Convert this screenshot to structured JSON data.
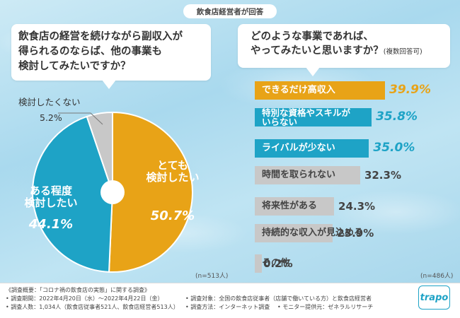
{
  "header": "飲食店経営者が回答",
  "left_question": "飲食店の経営を続けながら副収入が\n得られるのならば、他の事業も\n検討してみたいですか？",
  "right_question": "どのような事業であれば、\nやってみたいと思いますか？",
  "right_question_note": "(複数回答可)",
  "chart_data": [
    {
      "type": "pie",
      "categories": [
        "とても検討したい",
        "ある程度検討したい",
        "検討したくない"
      ],
      "values": [
        50.7,
        44.1,
        5.2
      ],
      "value_labels": [
        "50.7%",
        "44.1%",
        "5.2%"
      ],
      "colors": [
        "#e8a317",
        "#1ea3c6",
        "#c8c8c8"
      ],
      "n": "(n=513人)"
    },
    {
      "type": "bar",
      "orientation": "horizontal",
      "categories": [
        "できるだけ高収入",
        "特別な資格やスキルが\nいらない",
        "ライバルが少ない",
        "時間を取られない",
        "将来性がある",
        "持続的な収入が見込める",
        "その他"
      ],
      "values": [
        39.9,
        35.8,
        35.0,
        32.3,
        24.3,
        23.9,
        0.2
      ],
      "value_labels": [
        "39.9%",
        "35.8%",
        "35.0%",
        "32.3%",
        "24.3%",
        "23.9%",
        "0.2%"
      ],
      "colors": [
        "#e8a317",
        "#1ea3c6",
        "#1ea3c6",
        "#c8c8c8",
        "#c8c8c8",
        "#c8c8c8",
        "#c8c8c8"
      ],
      "n": "(n=486人)"
    }
  ],
  "pie_labels": {
    "very": "とても\n検討したい",
    "very_pct": "50.7%",
    "some": "ある程度\n検討したい",
    "some_pct": "44.1%",
    "no": "検討したくない",
    "no_pct": "5.2%"
  },
  "footer": {
    "l1": "《調査概要：「コロナ禍の飲食店の実態」に関する調査》",
    "l2": "• 調査期間：2022年4月20日（水）～2022年4月22日（金）",
    "l3": "• 調査人数：1,034人（飲食店従事者521人、飲食店経営者513人）",
    "r2": "• 調査対象：全国の飲食店従事者（店舗で働いている方）と飲食店経営者",
    "r3": "• 調査方法：インターネット調査",
    "r3b": "• モニター提供元：ゼネラルリサーチ",
    "brand": "trapo"
  }
}
